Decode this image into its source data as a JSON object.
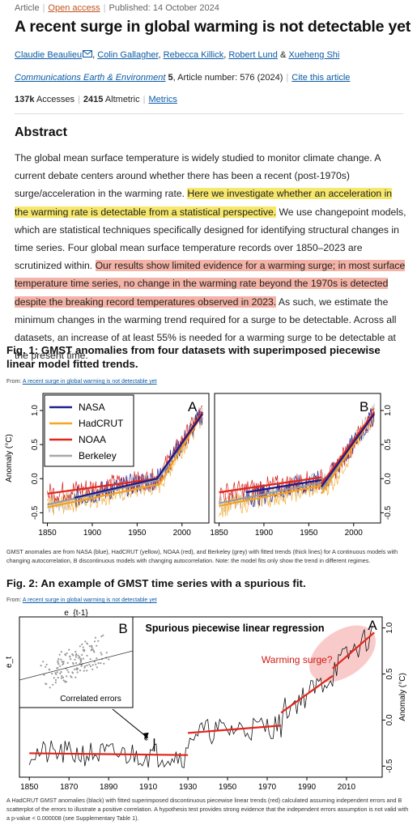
{
  "meta": {
    "type": "Article",
    "access": "Open access",
    "published": "Published: 14 October 2024"
  },
  "title": "A recent surge in global warming is not detectable yet",
  "authors": [
    "Claudie Beaulieu",
    "Colin Gallagher",
    "Rebecca Killick",
    "Robert Lund",
    "Xueheng Shi"
  ],
  "journal": {
    "name": "Communications Earth & Environment",
    "volume": "5",
    "article": ", Article number: 576 (2024)",
    "cite": "Cite this article"
  },
  "metrics": {
    "accesses": "137k",
    "accesses_label": "Accesses",
    "altmetric": "2415",
    "altmetric_label": "Altmetric",
    "metrics_link": "Metrics"
  },
  "abstract": {
    "heading": "Abstract",
    "p1": "The global mean surface temperature is widely studied to monitor climate change. A current debate centers around whether there has been a recent (post-1970s) surge/acceleration in the warming rate. ",
    "h1": "Here we investigate whether an acceleration in the warming rate is detectable from a statistical perspective.",
    "p2": " We use changepoint models, which are statistical techniques specifically designed for identifying structural changes in time series. Four global mean surface temperature records over 1850–2023 are scrutinized within. ",
    "h2": "Our results show limited evidence for a warming surge; in most surface temperature time series, no change in the warming rate beyond the 1970s is detected despite the breaking record temperatures observed in 2023.",
    "p3": " As such, we estimate the minimum changes in the warming trend required for a surge to be detectable. Across all datasets, an increase of at least 55% is needed for a warming surge to be detectable at the present time."
  },
  "fig1": {
    "heading": "Fig. 1: GMST anomalies from four datasets with superimposed piecewise linear model fitted trends.",
    "from": "From: ",
    "from_link": "A recent surge in global warming is not detectable yet",
    "caption": "GMST anomalies are from NASA (blue), HadCRUT (yellow), NOAA (red), and Berkeley (grey) with fitted trends (thick lines) for A continuous models with changing autocorrelation, B discontinuous models with changing autocorrelation. Note: the model fits only show the trend in different regimes.",
    "chart_data": [
      {
        "type": "line",
        "panel": "A",
        "ylabel": "Anomaly (°C)",
        "xlim": [
          1845,
          2030
        ],
        "ylim": [
          -0.65,
          1.25
        ],
        "xticks": [
          "1850",
          "1900",
          "1950",
          "2000"
        ],
        "yticks": [
          "-0.5",
          "0.0",
          "0.5",
          "1.0"
        ],
        "series": [
          {
            "name": "NASA",
            "color": "#1f1f8f"
          },
          {
            "name": "HadCRUT",
            "color": "#f5a623"
          },
          {
            "name": "NOAA",
            "color": "#e0261c"
          },
          {
            "name": "Berkeley",
            "color": "#a8a8a8"
          }
        ],
        "trends": {
          "NASA": [
            [
              1880,
              -0.28
            ],
            [
              1972,
              0.0
            ],
            [
              2023,
              0.95
            ]
          ],
          "HadCRUT": [
            [
              1850,
              -0.42
            ],
            [
              1975,
              -0.08
            ],
            [
              2023,
              0.95
            ]
          ],
          "NOAA": [
            [
              1850,
              -0.22
            ],
            [
              1972,
              0.0
            ],
            [
              2023,
              0.98
            ]
          ],
          "Berkeley": [
            [
              1850,
              -0.38
            ],
            [
              1973,
              -0.02
            ],
            [
              2023,
              0.97
            ]
          ]
        },
        "legend": "top-left"
      },
      {
        "type": "line",
        "panel": "B",
        "xlim": [
          1845,
          2030
        ],
        "ylim": [
          -0.65,
          1.25
        ],
        "xticks": [
          "1850",
          "1900",
          "1950",
          "2000"
        ],
        "yticks": [
          "-0.5",
          "0.0",
          "0.5",
          "1.0"
        ],
        "trends": {
          "NASA": [
            [
              1880,
              -0.2
            ],
            [
              1964,
              -0.02
            ],
            [
              1964,
              -0.12
            ],
            [
              2023,
              0.95
            ]
          ],
          "HadCRUT": [
            [
              1850,
              -0.4
            ],
            [
              1964,
              -0.1
            ],
            [
              1964,
              -0.22
            ],
            [
              2023,
              0.95
            ]
          ],
          "NOAA": [
            [
              1850,
              -0.2
            ],
            [
              1964,
              0.02
            ],
            [
              1964,
              -0.08
            ],
            [
              2023,
              0.98
            ]
          ],
          "Berkeley": [
            [
              1850,
              -0.36
            ],
            [
              1964,
              -0.06
            ],
            [
              1964,
              -0.16
            ],
            [
              2023,
              0.97
            ]
          ]
        }
      }
    ]
  },
  "fig2": {
    "heading": "Fig. 2: An example of GMST time series with a spurious fit.",
    "from": "From: ",
    "from_link": "A recent surge in global warming is not detectable yet",
    "caption_a": "A HadCRUT GMST anomalies (black) with fitted superimposed discontinuous piecewise linear trends (red) calculated assuming independent errors and B scatterplot of the errors to illustrate a positive correlation. A hypothesis test provides strong evidence that the independent errors assumption is not valid with a p-value < 0.000008 (see Supplementary Table 1).",
    "chart_data": {
      "type": "line",
      "ylabel": "Anomaly (°C)",
      "xlim": [
        1845,
        2028
      ],
      "ylim": [
        -0.62,
        1.12
      ],
      "xticks": [
        "1850",
        "1870",
        "1890",
        "1910",
        "1930",
        "1950",
        "1970",
        "1990",
        "2010"
      ],
      "yticks": [
        "-0.5",
        "0.0",
        "0.5",
        "1.0"
      ],
      "title": "Spurious piecewise linear regression",
      "annotation": "Warming surge?",
      "label_a": "A",
      "label_b": "B",
      "segments": [
        [
          [
            1850,
            -0.36
          ],
          [
            1930,
            -0.38
          ]
        ],
        [
          [
            1930,
            -0.14
          ],
          [
            1977,
            -0.06
          ]
        ],
        [
          [
            1977,
            0.08
          ],
          [
            2003,
            0.48
          ]
        ],
        [
          [
            2003,
            0.56
          ],
          [
            2024,
            0.95
          ]
        ]
      ],
      "inset": {
        "xlabel": "e_{t-1}",
        "ylabel": "e_t",
        "caption": "Correlated errors"
      },
      "epsilon": "e"
    }
  }
}
